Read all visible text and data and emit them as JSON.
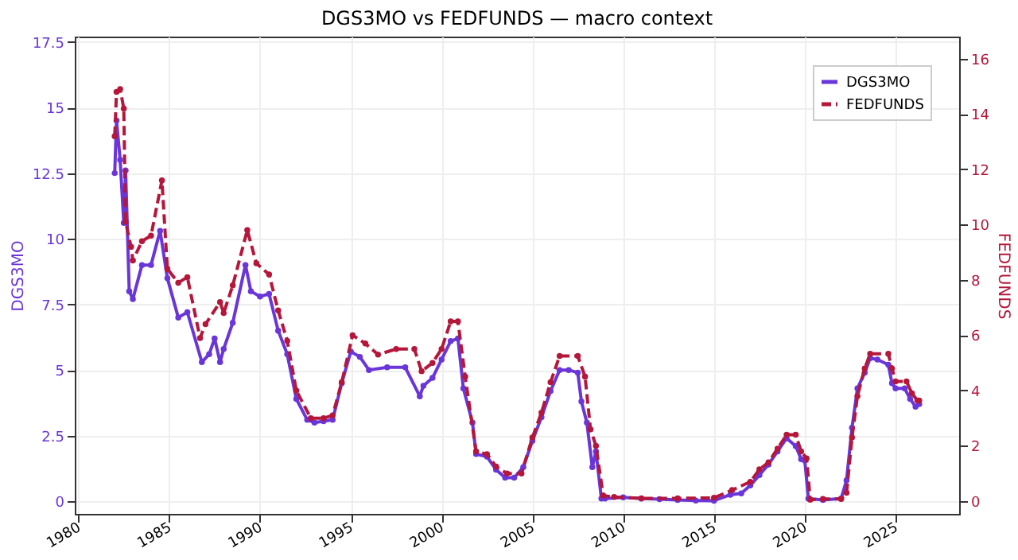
{
  "chart_data": {
    "type": "line",
    "title": "DGS3MO vs FEDFUNDS — macro context",
    "ylabel": "DGS3MO",
    "y2label": "FEDFUNDS",
    "xlim": [
      1979.8,
      2028.5
    ],
    "xticks": [
      1980,
      1985,
      1990,
      1995,
      2000,
      2005,
      2010,
      2015,
      2020,
      2025
    ],
    "ylim": [
      -0.48,
      17.7
    ],
    "yticks": [
      0,
      2.5,
      5,
      7.5,
      10,
      12.5,
      15,
      17.5
    ],
    "y2lim": [
      -0.46,
      16.8
    ],
    "y2ticks": [
      0,
      2,
      4,
      6,
      8,
      10,
      12,
      14,
      16
    ],
    "grid": true,
    "legend": "top right",
    "marker": "circle",
    "series": [
      {
        "name": "DGS3MO",
        "color": "#6a35d9",
        "line_style": "solid",
        "x": [
          1982.0,
          1982.1,
          1982.3,
          1982.5,
          1982.6,
          1982.8,
          1983.0,
          1983.5,
          1984.0,
          1984.5,
          1984.9,
          1985.5,
          1986.0,
          1986.8,
          1987.2,
          1987.5,
          1987.8,
          1988.0,
          1988.5,
          1989.2,
          1989.5,
          1990.0,
          1990.5,
          1991.0,
          1991.5,
          1992.0,
          1992.6,
          1993.0,
          1993.5,
          1994.0,
          1994.5,
          1995.0,
          1995.5,
          1996.0,
          1997.0,
          1998.0,
          1998.8,
          1999.0,
          1999.5,
          2000.0,
          2000.5,
          2000.9,
          2001.2,
          2001.7,
          2001.9,
          2002.5,
          2003.0,
          2003.5,
          2004.0,
          2004.5,
          2005.0,
          2005.5,
          2006.0,
          2006.5,
          2007.0,
          2007.5,
          2007.7,
          2008.0,
          2008.3,
          2008.5,
          2008.8,
          2009.0,
          2010.0,
          2011.0,
          2012.0,
          2013.0,
          2014.0,
          2015.0,
          2015.9,
          2016.5,
          2017.0,
          2017.5,
          2018.0,
          2018.5,
          2019.0,
          2019.5,
          2019.8,
          2020.0,
          2020.2,
          2021.0,
          2022.0,
          2022.3,
          2022.6,
          2022.9,
          2023.3,
          2023.6,
          2024.0,
          2024.6,
          2024.8,
          2025.0,
          2025.5,
          2025.8,
          2026.1,
          2026.3
        ],
        "values": [
          12.5,
          14.5,
          13.0,
          10.6,
          12.6,
          8.0,
          7.7,
          9.0,
          9.0,
          10.3,
          8.5,
          7.0,
          7.2,
          5.3,
          5.6,
          6.2,
          5.3,
          5.8,
          6.8,
          9.0,
          8.0,
          7.8,
          7.9,
          6.5,
          5.6,
          3.9,
          3.1,
          3.0,
          3.05,
          3.1,
          4.5,
          5.7,
          5.5,
          5.0,
          5.1,
          5.1,
          4.0,
          4.4,
          4.7,
          5.4,
          6.1,
          6.2,
          4.3,
          3.0,
          1.8,
          1.7,
          1.2,
          0.9,
          0.9,
          1.3,
          2.3,
          3.2,
          4.2,
          5.0,
          5.0,
          4.9,
          3.8,
          3.0,
          1.3,
          1.9,
          0.1,
          0.1,
          0.15,
          0.1,
          0.08,
          0.05,
          0.03,
          0.02,
          0.25,
          0.3,
          0.6,
          1.0,
          1.4,
          1.9,
          2.4,
          2.1,
          1.6,
          1.55,
          0.1,
          0.05,
          0.1,
          0.8,
          2.8,
          4.3,
          4.9,
          5.45,
          5.4,
          5.2,
          4.5,
          4.3,
          4.3,
          3.9,
          3.6,
          3.7
        ]
      },
      {
        "name": "FEDFUNDS",
        "color": "#b5173a",
        "line_style": "dashed",
        "axis": "y2",
        "x": [
          1982.0,
          1982.1,
          1982.3,
          1982.5,
          1982.6,
          1982.9,
          1983.0,
          1983.5,
          1984.0,
          1984.6,
          1984.9,
          1985.5,
          1986.0,
          1986.7,
          1987.0,
          1987.8,
          1988.0,
          1988.5,
          1989.3,
          1989.8,
          1990.5,
          1991.0,
          1991.5,
          1992.0,
          1992.8,
          1993.5,
          1994.0,
          1994.5,
          1995.1,
          1995.8,
          1996.5,
          1997.5,
          1998.5,
          1998.9,
          1999.5,
          2000.0,
          2000.5,
          2000.9,
          2001.3,
          2001.9,
          2002.5,
          2003.0,
          2003.6,
          2004.4,
          2005.0,
          2005.5,
          2006.0,
          2006.5,
          2007.5,
          2007.9,
          2008.2,
          2008.5,
          2008.9,
          2009.5,
          2011.0,
          2013.0,
          2015.0,
          2016.0,
          2017.0,
          2017.5,
          2018.0,
          2018.5,
          2019.0,
          2019.5,
          2019.8,
          2020.1,
          2020.3,
          2021.0,
          2022.0,
          2022.3,
          2022.6,
          2022.9,
          2023.3,
          2023.6,
          2024.6,
          2024.8,
          2025.0,
          2025.6,
          2025.9,
          2026.2,
          2026.3
        ],
        "values": [
          13.2,
          14.8,
          14.9,
          14.2,
          10.1,
          9.2,
          8.7,
          9.4,
          9.6,
          11.6,
          8.4,
          7.9,
          8.1,
          5.9,
          6.4,
          7.2,
          6.8,
          7.8,
          9.8,
          8.6,
          8.2,
          6.9,
          5.8,
          4.0,
          3.0,
          3.0,
          3.1,
          4.3,
          6.0,
          5.7,
          5.3,
          5.5,
          5.5,
          4.7,
          5.0,
          5.5,
          6.5,
          6.5,
          4.5,
          1.8,
          1.7,
          1.25,
          1.0,
          1.0,
          2.3,
          3.2,
          4.3,
          5.25,
          5.25,
          4.5,
          2.6,
          2.0,
          0.2,
          0.15,
          0.1,
          0.1,
          0.12,
          0.4,
          0.7,
          1.15,
          1.4,
          1.9,
          2.4,
          2.4,
          1.8,
          1.55,
          0.05,
          0.08,
          0.08,
          0.3,
          2.3,
          3.8,
          4.8,
          5.33,
          5.33,
          4.8,
          4.33,
          4.33,
          3.9,
          3.64,
          3.64
        ]
      }
    ]
  }
}
